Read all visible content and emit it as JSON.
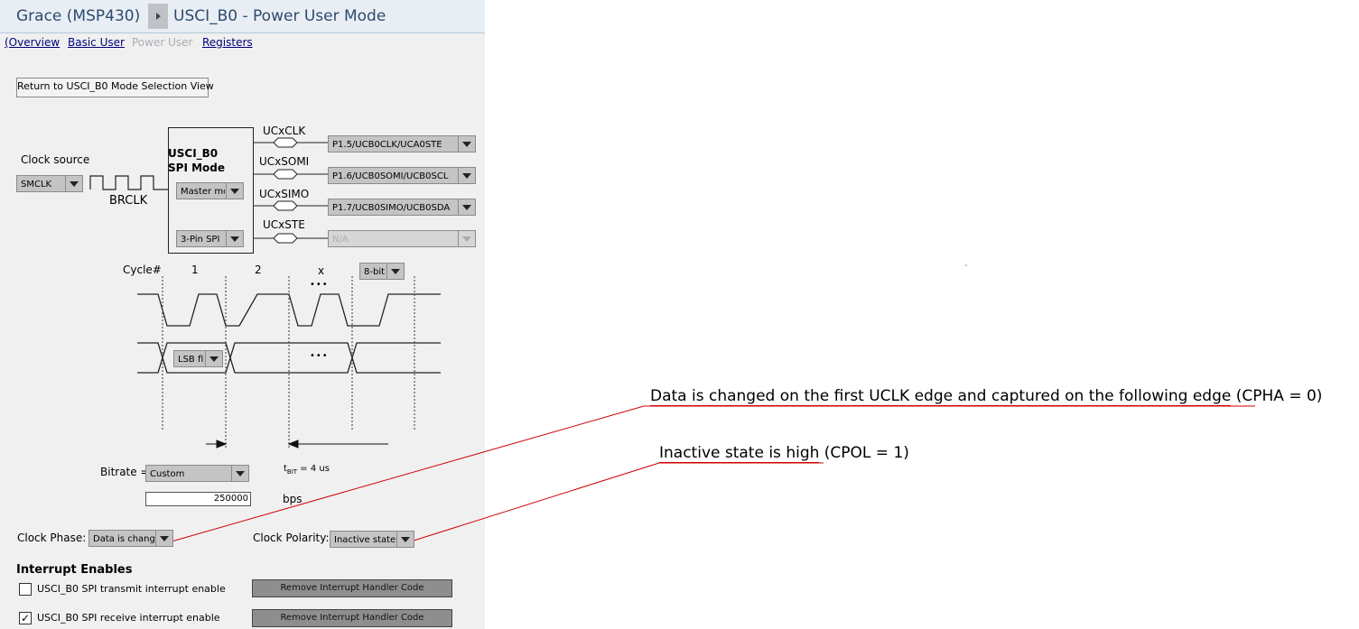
{
  "header": {
    "app": "Grace (MSP430)",
    "page": "USCI_B0 - Power User Mode"
  },
  "nav": {
    "overview": "(Overview",
    "basic_user": "Basic User",
    "power_user": "Power User",
    "registers": "Registers"
  },
  "return_button": "Return to USCI_B0 Mode Selection View",
  "clock": {
    "source_label": "Clock source",
    "source_value": "SMCLK",
    "brclk": "BRCLK"
  },
  "module": {
    "title_line1": "USCI_B0",
    "title_line2": "SPI Mode",
    "mode_value": "Master mo",
    "pin_mode_value": "3-Pin SPI"
  },
  "pins": [
    {
      "signal": "UCxCLK",
      "value": "P1.5/UCB0CLK/UCA0STE",
      "enabled": true
    },
    {
      "signal": "UCxSOMI",
      "value": "P1.6/UCB0SOMI/UCB0SCL",
      "enabled": true
    },
    {
      "signal": "UCxSIMO",
      "value": "P1.7/UCB0SIMO/UCB0SDA",
      "enabled": true
    },
    {
      "signal": "UCxSTE",
      "value": "N/A",
      "enabled": false
    }
  ],
  "timing": {
    "cycle_label": "Cycle#",
    "c1": "1",
    "c2": "2",
    "cx": "x",
    "dots": "•••",
    "char_length": "8-bit",
    "bit_order": "LSB firs"
  },
  "bitrate": {
    "label": "Bitrate =",
    "mode": "Custom",
    "tbit_prefix": "t",
    "tbit_sub": "BIT",
    "tbit_suffix": " = 4 us",
    "value": "250000",
    "unit": "bps"
  },
  "clock_phase": {
    "label": "Clock Phase:",
    "value": "Data is change"
  },
  "clock_polarity": {
    "label": "Clock Polarity:",
    "value": "Inactive state i"
  },
  "interrupts": {
    "title": "Interrupt Enables",
    "items": [
      {
        "label": "USCI_B0 SPI transmit interrupt enable",
        "checked": false,
        "button": "Remove Interrupt Handler Code"
      },
      {
        "label": "USCI_B0 SPI receive interrupt enable",
        "checked": true,
        "button": "Remove Interrupt Handler Code"
      }
    ]
  },
  "annotations": {
    "phase_text": "Data is changed on the first UCLK edge and captured on the following edge",
    "phase_suffix": " (CPHA = 0)",
    "polarity_text": "Inactive state is high",
    "polarity_suffix": " (CPOL = 1)"
  },
  "colors": {
    "annotation_line": "#d00000",
    "nav_link": "#00007a",
    "header_text": "#2d4a6e"
  }
}
